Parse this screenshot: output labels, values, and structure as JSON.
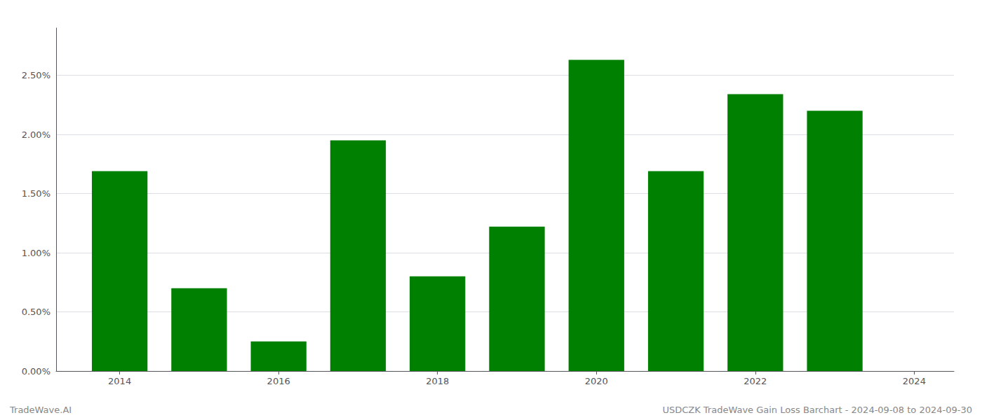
{
  "chart_data": {
    "type": "bar",
    "annotations": [
      "TradeWave.AI",
      "USDCZK TradeWave Gain Loss Barchart - 2024-09-08 to 2024-09-30"
    ],
    "x": [
      2014,
      2015,
      2016,
      2017,
      2018,
      2019,
      2020,
      2021,
      2022,
      2023
    ],
    "values": [
      0.0169,
      0.007,
      0.0025,
      0.0195,
      0.008,
      0.0122,
      0.0263,
      0.0169,
      0.0234,
      0.022
    ],
    "color": "#008000",
    "xlim": [
      2013.2,
      2024.5
    ],
    "xticks": [
      2014,
      2016,
      2018,
      2020,
      2022,
      2024
    ],
    "ylim": [
      0,
      0.029
    ],
    "yticks": [
      {
        "value": 0.0,
        "label": "0.00%"
      },
      {
        "value": 0.005,
        "label": "0.50%"
      },
      {
        "value": 0.01,
        "label": "1.00%"
      },
      {
        "value": 0.015,
        "label": "1.50%"
      },
      {
        "value": 0.02,
        "label": "2.00%"
      },
      {
        "value": 0.025,
        "label": "2.50%"
      }
    ],
    "grid": true
  }
}
